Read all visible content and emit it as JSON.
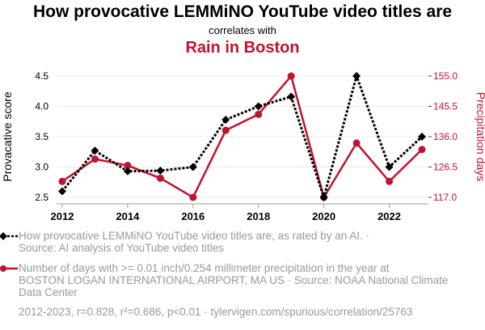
{
  "header": {
    "title": "How provocative LEMMiNO YouTube video titles are",
    "connector": "correlates with",
    "title2": "Rain in Boston"
  },
  "chart_data": {
    "type": "line",
    "x": [
      2012,
      2013,
      2014,
      2015,
      2016,
      2017,
      2018,
      2019,
      2020,
      2021,
      2022,
      2023
    ],
    "xticks": [
      "2012",
      "2014",
      "2016",
      "2018",
      "2020",
      "2022"
    ],
    "series": [
      {
        "name": "How provocative LEMMiNO YouTube video titles are",
        "axis": "left",
        "color": "#000000",
        "values": [
          2.6,
          3.27,
          2.93,
          2.94,
          3.0,
          3.78,
          4.0,
          4.16,
          2.5,
          4.5,
          3.0,
          3.5
        ]
      },
      {
        "name": "Rain in Boston",
        "axis": "right",
        "color": "#c0132e",
        "values": [
          122,
          129,
          127,
          123,
          117,
          138,
          143,
          155,
          117,
          134,
          122,
          132
        ]
      }
    ],
    "ylabel": "Provacative score",
    "ylim": [
      2.5,
      4.5
    ],
    "yticks": [
      "2.5",
      "3.0",
      "3.5",
      "4.0",
      "4.5"
    ],
    "y2label": "Precipitation days",
    "y2lim": [
      117,
      155
    ],
    "y2ticks": [
      "117.0",
      "126.5",
      "136.0",
      "145.5",
      "155.0"
    ],
    "grid": true
  },
  "legend": [
    {
      "line1": "How provocative LEMMiNO YouTube video titles are, as rated by an AI. ·",
      "line2": "Source: AI analysis of YouTube video titles"
    },
    {
      "line1": "Number of days with >= 0.01 inch/0.254 millimeter precipitation in the year at",
      "line2": "BOSTON LOGAN INTERNATIONAL AIRPORT, MA US · Source: NOAA National Climate",
      "line3": "Data Center"
    }
  ],
  "footer": "2012-2023, r=0.828, r²=0.686, p<0.01 · tylervigen.com/spurious/correlation/25763"
}
